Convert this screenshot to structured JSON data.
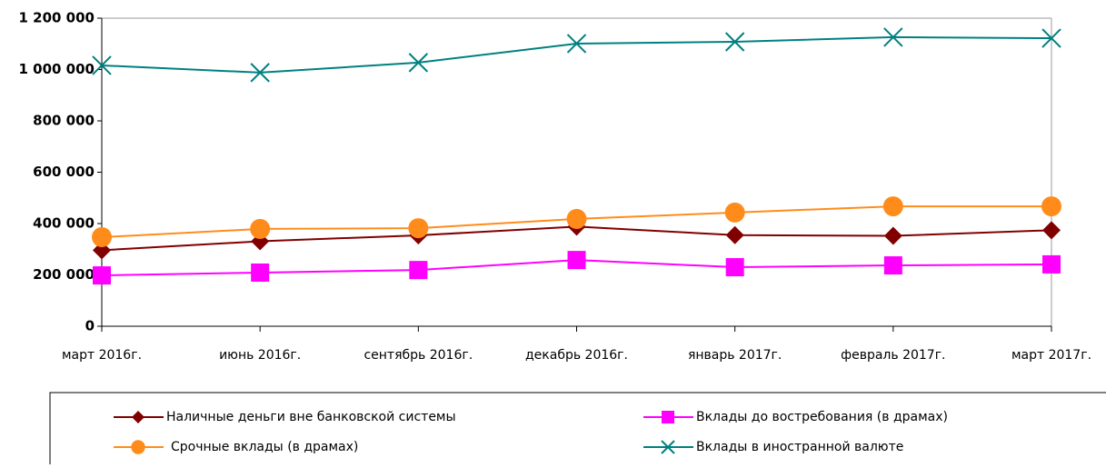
{
  "chart_data": {
    "type": "line",
    "categories": [
      "март 2016г.",
      "июнь 2016г.",
      "сентябрь 2016г.",
      "декабрь 2016г.",
      "январь 2017г.",
      "февраль 2017г.",
      "март 2017г."
    ],
    "series": [
      {
        "name": "Наличные деньги вне банковской системы",
        "color": "#800000",
        "marker": "diamond",
        "values": [
          296000,
          331000,
          354000,
          388000,
          355000,
          352000,
          374000
        ]
      },
      {
        "name": "Вклады до востребования (в драмах)",
        "color": "#ff00ff",
        "marker": "square",
        "values": [
          198000,
          209000,
          219000,
          258000,
          230000,
          237000,
          241000
        ]
      },
      {
        "name": "Срочные вклады (в драмах)",
        "color": "#ff8c1a",
        "marker": "circle",
        "values": [
          347000,
          379000,
          382000,
          418000,
          443000,
          467000,
          467000
        ]
      },
      {
        "name": "Вклады в иностранной валюте",
        "color": "#008080",
        "marker": "x",
        "values": [
          1016000,
          988000,
          1027000,
          1101000,
          1108000,
          1126000,
          1122000
        ]
      }
    ],
    "ylim": [
      0,
      1200000
    ],
    "yticks": [
      0,
      {
        "value": 200000,
        "label": "200 000"
      },
      {
        "value": 400000,
        "label": "400 000"
      },
      {
        "value": 600000,
        "label": "600 000"
      },
      {
        "value": 800000,
        "label": "800 000"
      },
      {
        "value": 1000000,
        "label": "1 000 000"
      },
      {
        "value": 1200000,
        "label": "1 200 000"
      }
    ]
  }
}
